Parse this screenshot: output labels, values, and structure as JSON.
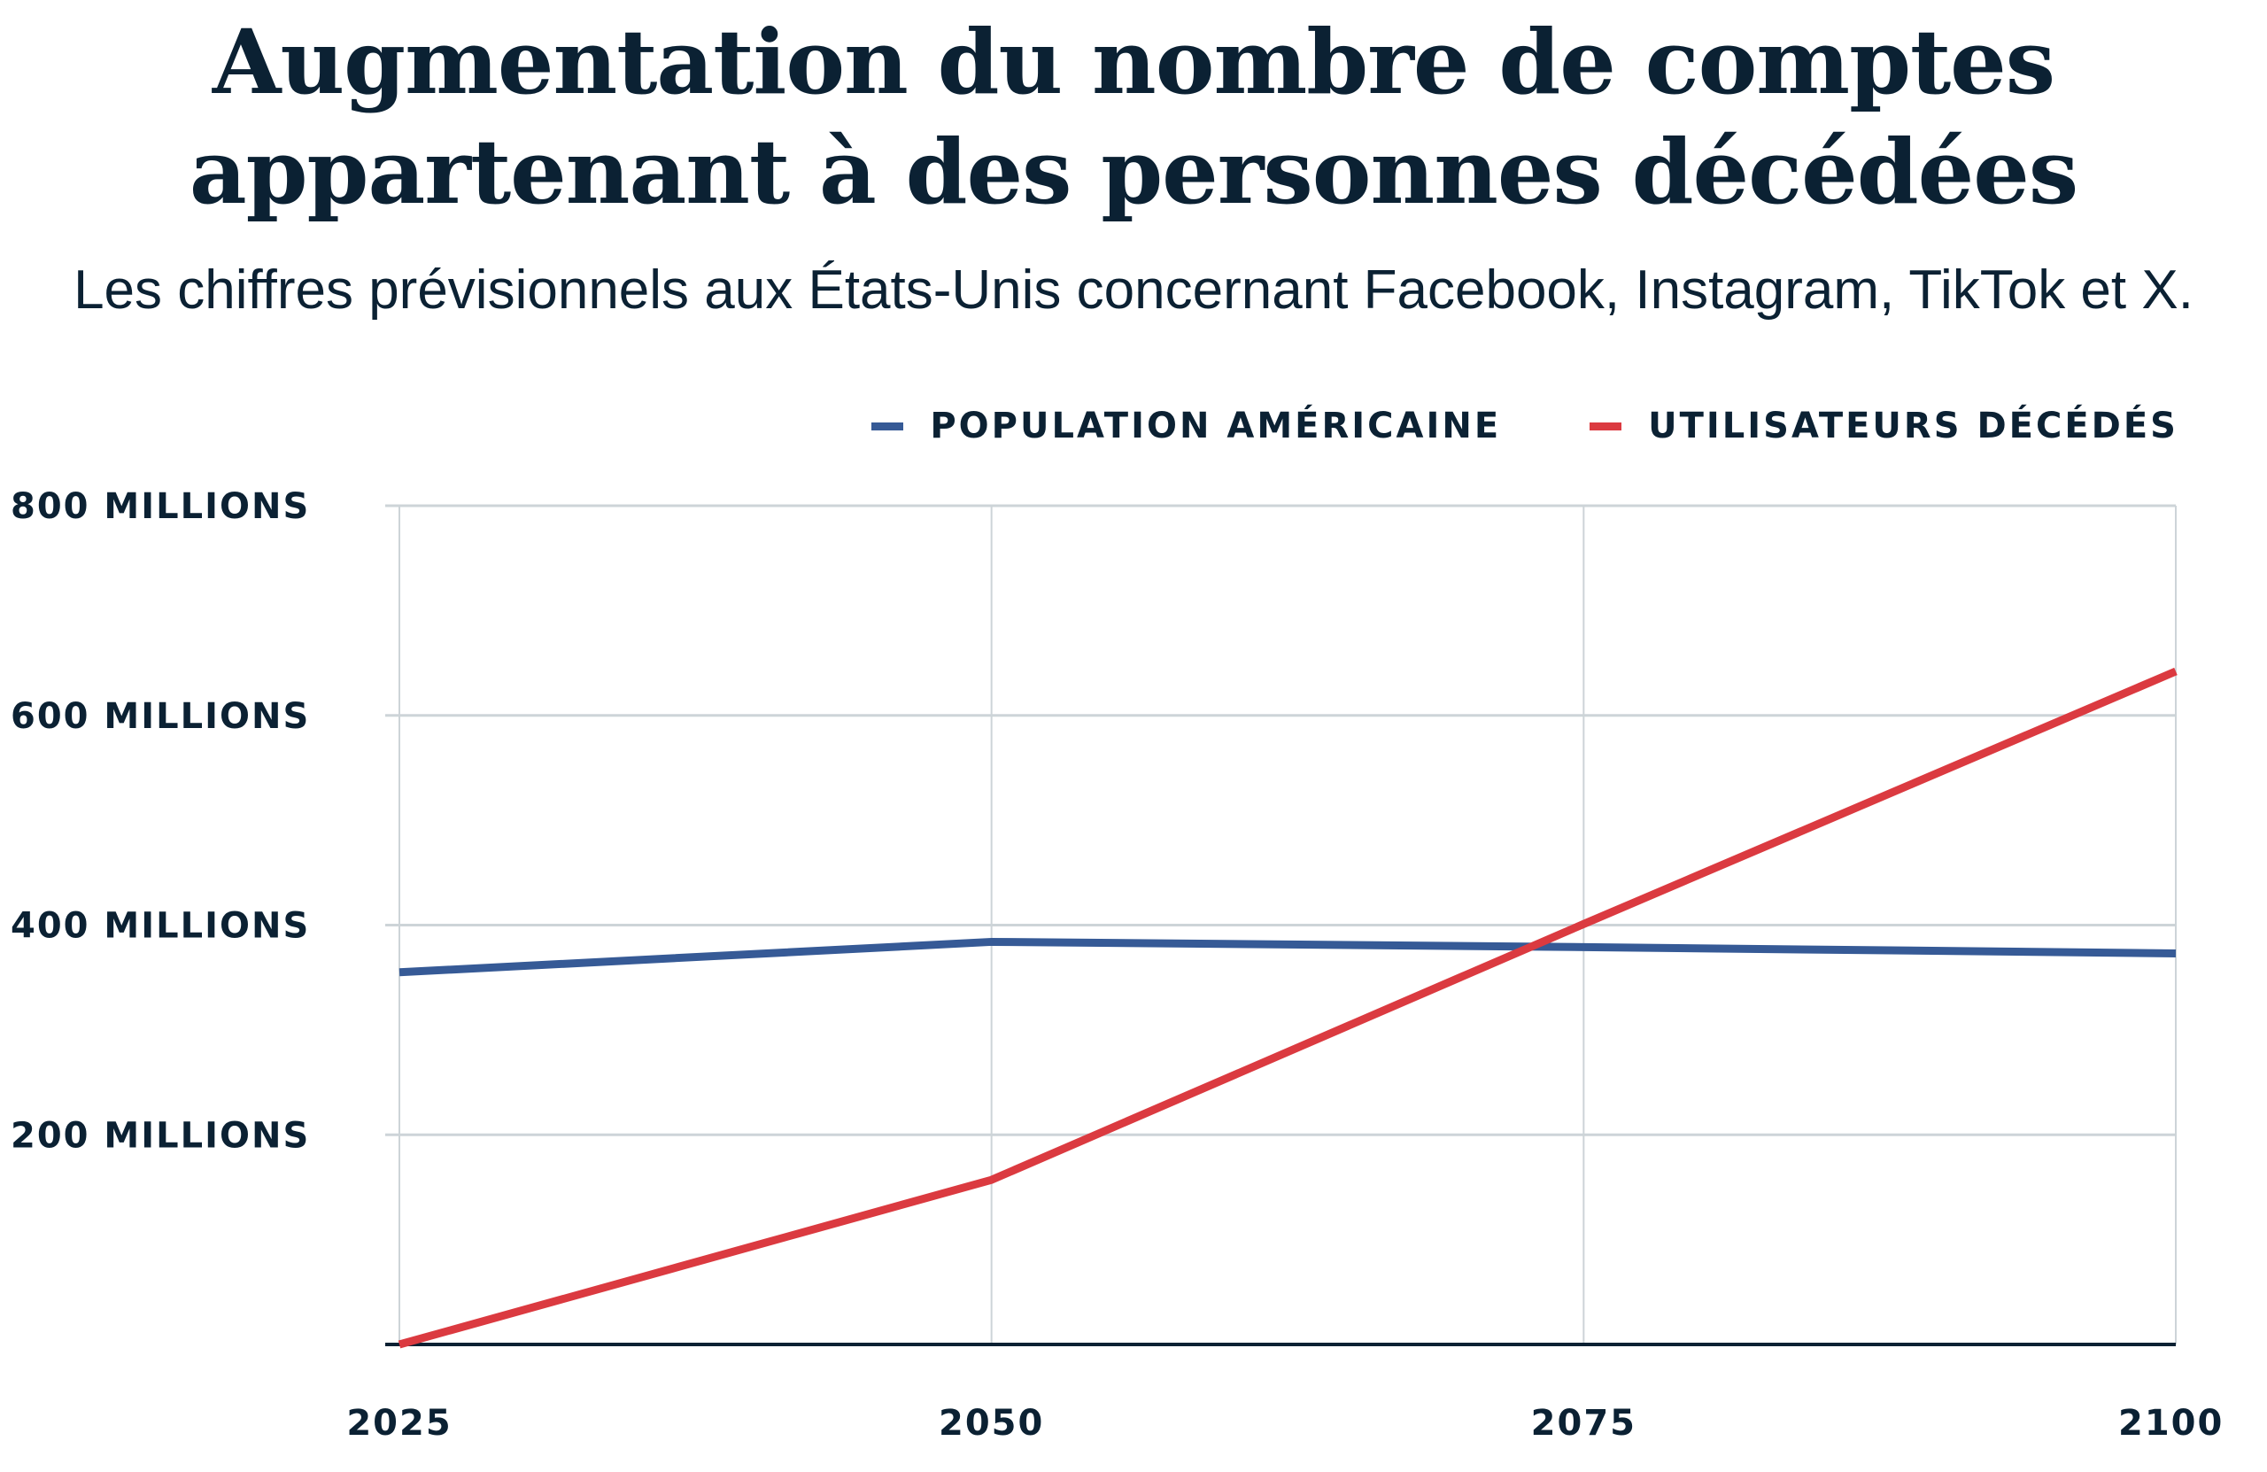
{
  "title_line1": "Augmentation du nombre de comptes",
  "title_line2": "appartenant à des personnes décédées",
  "subtitle": "Les chiffres prévisionnels aux États-Unis concernant Facebook, Instagram, TikTok et X.",
  "chart_data": {
    "type": "line",
    "title": "Augmentation du nombre de comptes appartenant à des personnes décédées",
    "subtitle": "Les chiffres prévisionnels aux États-Unis concernant Facebook, Instagram, TikTok et X.",
    "x": [
      2025,
      2050,
      2075,
      2100
    ],
    "x_tick_labels": [
      "2025",
      "2050",
      "2075",
      "2100"
    ],
    "ylim": [
      0,
      800
    ],
    "y_ticks": [
      200,
      400,
      600,
      800
    ],
    "y_tick_labels": [
      "200 MILLIONS",
      "400 MILLIONS",
      "600 MILLIONS",
      "800 MILLIONS"
    ],
    "grid": true,
    "legend": "top-right",
    "series": [
      {
        "name": "POPULATION AMÉRICAINE",
        "color": "#365a96",
        "values": [
          355,
          384,
          379,
          373
        ]
      },
      {
        "name": "UTILISATEURS DÉCÉDÉS",
        "color": "#db3a40",
        "values": [
          0,
          157,
          401,
          642
        ]
      }
    ]
  }
}
